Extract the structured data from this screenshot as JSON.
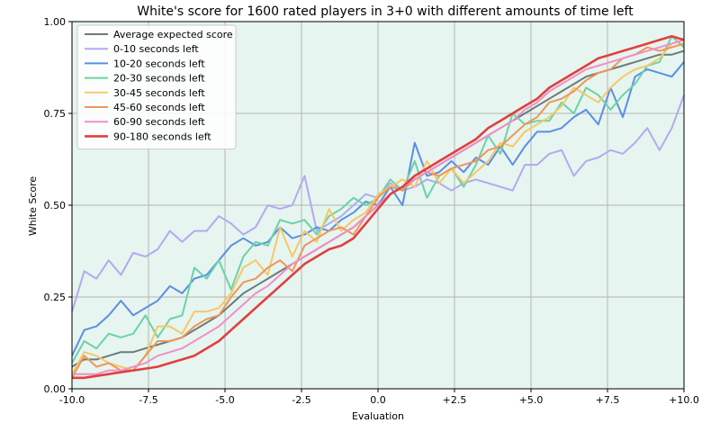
{
  "chart_data": {
    "type": "line",
    "title": "White's score for 1600 rated players in 3+0 with different amounts of time left",
    "xlabel": "Evaluation",
    "ylabel": "White Score",
    "xlim": [
      -10,
      10
    ],
    "ylim": [
      0,
      1
    ],
    "xticks": [
      -10,
      -7.5,
      -5,
      -2.5,
      0,
      2.5,
      5,
      7.5,
      10
    ],
    "xtick_labels": [
      "-10.0",
      "-7.5",
      "-5.0",
      "-2.5",
      "0.0",
      "+2.5",
      "+5.0",
      "+7.5",
      "+10.0"
    ],
    "yticks": [
      0,
      0.25,
      0.5,
      0.75,
      1
    ],
    "ytick_labels": [
      "0.00",
      "0.25",
      "0.50",
      "0.75",
      "1.00"
    ],
    "grid": true,
    "legend_position": "top-left",
    "background_color": "#e6f5ef",
    "x": [
      -10,
      -9.6,
      -9.2,
      -8.8,
      -8.4,
      -8,
      -7.6,
      -7.2,
      -6.8,
      -6.4,
      -6,
      -5.6,
      -5.2,
      -4.8,
      -4.4,
      -4,
      -3.6,
      -3.2,
      -2.8,
      -2.4,
      -2,
      -1.6,
      -1.2,
      -0.8,
      -0.4,
      0,
      0.4,
      0.8,
      1.2,
      1.6,
      2,
      2.4,
      2.8,
      3.2,
      3.6,
      4,
      4.4,
      4.8,
      5.2,
      5.6,
      6,
      6.4,
      6.8,
      7.2,
      7.6,
      8,
      8.4,
      8.8,
      9.2,
      9.6,
      10
    ],
    "series": [
      {
        "name": "Average expected score",
        "color": "#6b7b7b",
        "width": 2,
        "values": [
          0.06,
          0.08,
          0.08,
          0.09,
          0.1,
          0.1,
          0.11,
          0.12,
          0.13,
          0.14,
          0.16,
          0.18,
          0.2,
          0.23,
          0.26,
          0.28,
          0.3,
          0.32,
          0.34,
          0.36,
          0.38,
          0.4,
          0.42,
          0.44,
          0.47,
          0.5,
          0.53,
          0.55,
          0.57,
          0.59,
          0.61,
          0.63,
          0.65,
          0.67,
          0.69,
          0.71,
          0.73,
          0.75,
          0.77,
          0.79,
          0.81,
          0.83,
          0.85,
          0.86,
          0.87,
          0.88,
          0.89,
          0.9,
          0.91,
          0.91,
          0.92
        ]
      },
      {
        "name": "0-10 seconds left",
        "color": "#b3a9f2",
        "width": 2,
        "values": [
          0.21,
          0.32,
          0.3,
          0.35,
          0.31,
          0.37,
          0.36,
          0.38,
          0.43,
          0.4,
          0.43,
          0.43,
          0.47,
          0.45,
          0.42,
          0.44,
          0.5,
          0.49,
          0.5,
          0.58,
          0.43,
          0.45,
          0.47,
          0.5,
          0.53,
          0.52,
          0.56,
          0.54,
          0.55,
          0.57,
          0.56,
          0.54,
          0.56,
          0.57,
          0.56,
          0.55,
          0.54,
          0.61,
          0.61,
          0.64,
          0.65,
          0.58,
          0.62,
          0.63,
          0.65,
          0.64,
          0.67,
          0.71,
          0.65,
          0.71,
          0.8
        ]
      },
      {
        "name": "10-20 seconds left",
        "color": "#5b8ee6",
        "width": 2,
        "values": [
          0.09,
          0.16,
          0.17,
          0.2,
          0.24,
          0.2,
          0.22,
          0.24,
          0.28,
          0.26,
          0.3,
          0.31,
          0.35,
          0.39,
          0.41,
          0.39,
          0.4,
          0.44,
          0.41,
          0.42,
          0.44,
          0.43,
          0.46,
          0.48,
          0.51,
          0.5,
          0.55,
          0.5,
          0.67,
          0.58,
          0.59,
          0.62,
          0.59,
          0.63,
          0.61,
          0.66,
          0.61,
          0.66,
          0.7,
          0.7,
          0.71,
          0.74,
          0.76,
          0.72,
          0.82,
          0.74,
          0.85,
          0.87,
          0.86,
          0.85,
          0.89
        ]
      },
      {
        "name": "20-30 seconds left",
        "color": "#6dd1a8",
        "width": 2,
        "values": [
          0.07,
          0.13,
          0.11,
          0.15,
          0.14,
          0.15,
          0.2,
          0.14,
          0.19,
          0.2,
          0.33,
          0.3,
          0.35,
          0.27,
          0.36,
          0.4,
          0.39,
          0.46,
          0.45,
          0.46,
          0.42,
          0.47,
          0.49,
          0.52,
          0.5,
          0.52,
          0.57,
          0.54,
          0.62,
          0.52,
          0.58,
          0.6,
          0.55,
          0.61,
          0.69,
          0.64,
          0.75,
          0.72,
          0.73,
          0.73,
          0.78,
          0.75,
          0.82,
          0.8,
          0.76,
          0.8,
          0.83,
          0.88,
          0.89,
          0.96,
          0.93
        ]
      },
      {
        "name": "30-45 seconds left",
        "color": "#f5c86a",
        "width": 2,
        "values": [
          0.04,
          0.1,
          0.09,
          0.07,
          0.06,
          0.05,
          0.09,
          0.17,
          0.17,
          0.15,
          0.21,
          0.21,
          0.22,
          0.26,
          0.33,
          0.35,
          0.31,
          0.44,
          0.36,
          0.43,
          0.4,
          0.49,
          0.43,
          0.46,
          0.48,
          0.53,
          0.55,
          0.57,
          0.55,
          0.62,
          0.56,
          0.6,
          0.56,
          0.59,
          0.62,
          0.67,
          0.66,
          0.7,
          0.72,
          0.74,
          0.77,
          0.82,
          0.8,
          0.78,
          0.82,
          0.85,
          0.87,
          0.88,
          0.9,
          0.94,
          0.95
        ]
      },
      {
        "name": "45-60 seconds left",
        "color": "#f0955a",
        "width": 2,
        "values": [
          0.03,
          0.09,
          0.06,
          0.07,
          0.05,
          0.05,
          0.09,
          0.13,
          0.13,
          0.14,
          0.17,
          0.19,
          0.2,
          0.25,
          0.29,
          0.3,
          0.33,
          0.35,
          0.32,
          0.39,
          0.41,
          0.43,
          0.44,
          0.42,
          0.47,
          0.52,
          0.55,
          0.54,
          0.57,
          0.59,
          0.58,
          0.6,
          0.61,
          0.62,
          0.65,
          0.66,
          0.69,
          0.72,
          0.74,
          0.78,
          0.79,
          0.81,
          0.84,
          0.86,
          0.87,
          0.9,
          0.91,
          0.93,
          0.92,
          0.93,
          0.94
        ]
      },
      {
        "name": "60-90 seconds left",
        "color": "#f28ec8",
        "width": 2,
        "values": [
          0.04,
          0.04,
          0.04,
          0.05,
          0.05,
          0.06,
          0.07,
          0.09,
          0.1,
          0.11,
          0.13,
          0.15,
          0.17,
          0.2,
          0.23,
          0.26,
          0.28,
          0.31,
          0.34,
          0.36,
          0.38,
          0.4,
          0.42,
          0.44,
          0.47,
          0.5,
          0.53,
          0.55,
          0.57,
          0.59,
          0.61,
          0.63,
          0.65,
          0.67,
          0.69,
          0.71,
          0.73,
          0.76,
          0.78,
          0.81,
          0.83,
          0.85,
          0.87,
          0.88,
          0.89,
          0.9,
          0.91,
          0.92,
          0.93,
          0.94,
          0.95
        ]
      },
      {
        "name": "90-180 seconds left",
        "color": "#e04040",
        "width": 2.6,
        "values": [
          0.03,
          0.03,
          0.035,
          0.04,
          0.045,
          0.05,
          0.055,
          0.06,
          0.07,
          0.08,
          0.09,
          0.11,
          0.13,
          0.16,
          0.19,
          0.22,
          0.25,
          0.28,
          0.31,
          0.34,
          0.36,
          0.38,
          0.39,
          0.41,
          0.45,
          0.49,
          0.53,
          0.55,
          0.58,
          0.6,
          0.62,
          0.64,
          0.66,
          0.68,
          0.71,
          0.73,
          0.75,
          0.77,
          0.79,
          0.82,
          0.84,
          0.86,
          0.88,
          0.9,
          0.91,
          0.92,
          0.93,
          0.94,
          0.95,
          0.96,
          0.95
        ]
      }
    ]
  }
}
